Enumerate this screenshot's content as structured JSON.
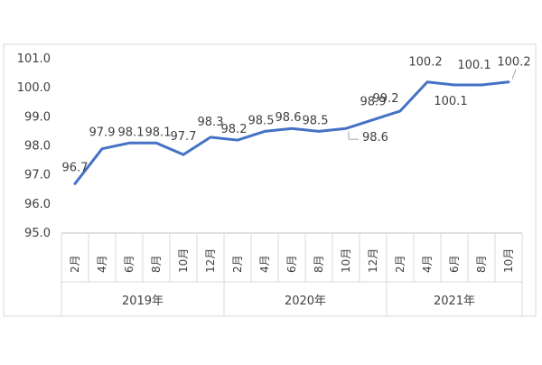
{
  "chart_data": {
    "type": "line",
    "title": "",
    "xlabel": "",
    "ylabel": "",
    "ylim": [
      95.0,
      101.0
    ],
    "y_ticks": [
      "95.0",
      "96.0",
      "97.0",
      "98.0",
      "99.0",
      "100.0",
      "101.0"
    ],
    "grid": false,
    "legend": "none",
    "line_color": "#4472C4",
    "groups": [
      {
        "label": "2019年",
        "months": [
          "2月",
          "4月",
          "6月",
          "8月",
          "10月",
          "12月"
        ]
      },
      {
        "label": "2020年",
        "months": [
          "2月",
          "4月",
          "6月",
          "8月",
          "10月",
          "12月"
        ]
      },
      {
        "label": "2021年",
        "months": [
          "2月",
          "4月",
          "6月",
          "8月",
          "10月"
        ]
      }
    ],
    "values": [
      96.7,
      97.9,
      98.1,
      98.1,
      97.7,
      98.3,
      98.2,
      98.5,
      98.6,
      98.5,
      98.6,
      98.9,
      99.2,
      100.2,
      100.1,
      100.1,
      100.2
    ],
    "data_labels": [
      "96.7",
      "97.9",
      "98.1",
      "98.1",
      "97.7",
      "98.3",
      "98.2",
      "98.5",
      "98.6",
      "98.5",
      "98.6",
      "98.9",
      "99.2",
      "100.2",
      "100.1",
      "100.1",
      "100.2"
    ]
  }
}
